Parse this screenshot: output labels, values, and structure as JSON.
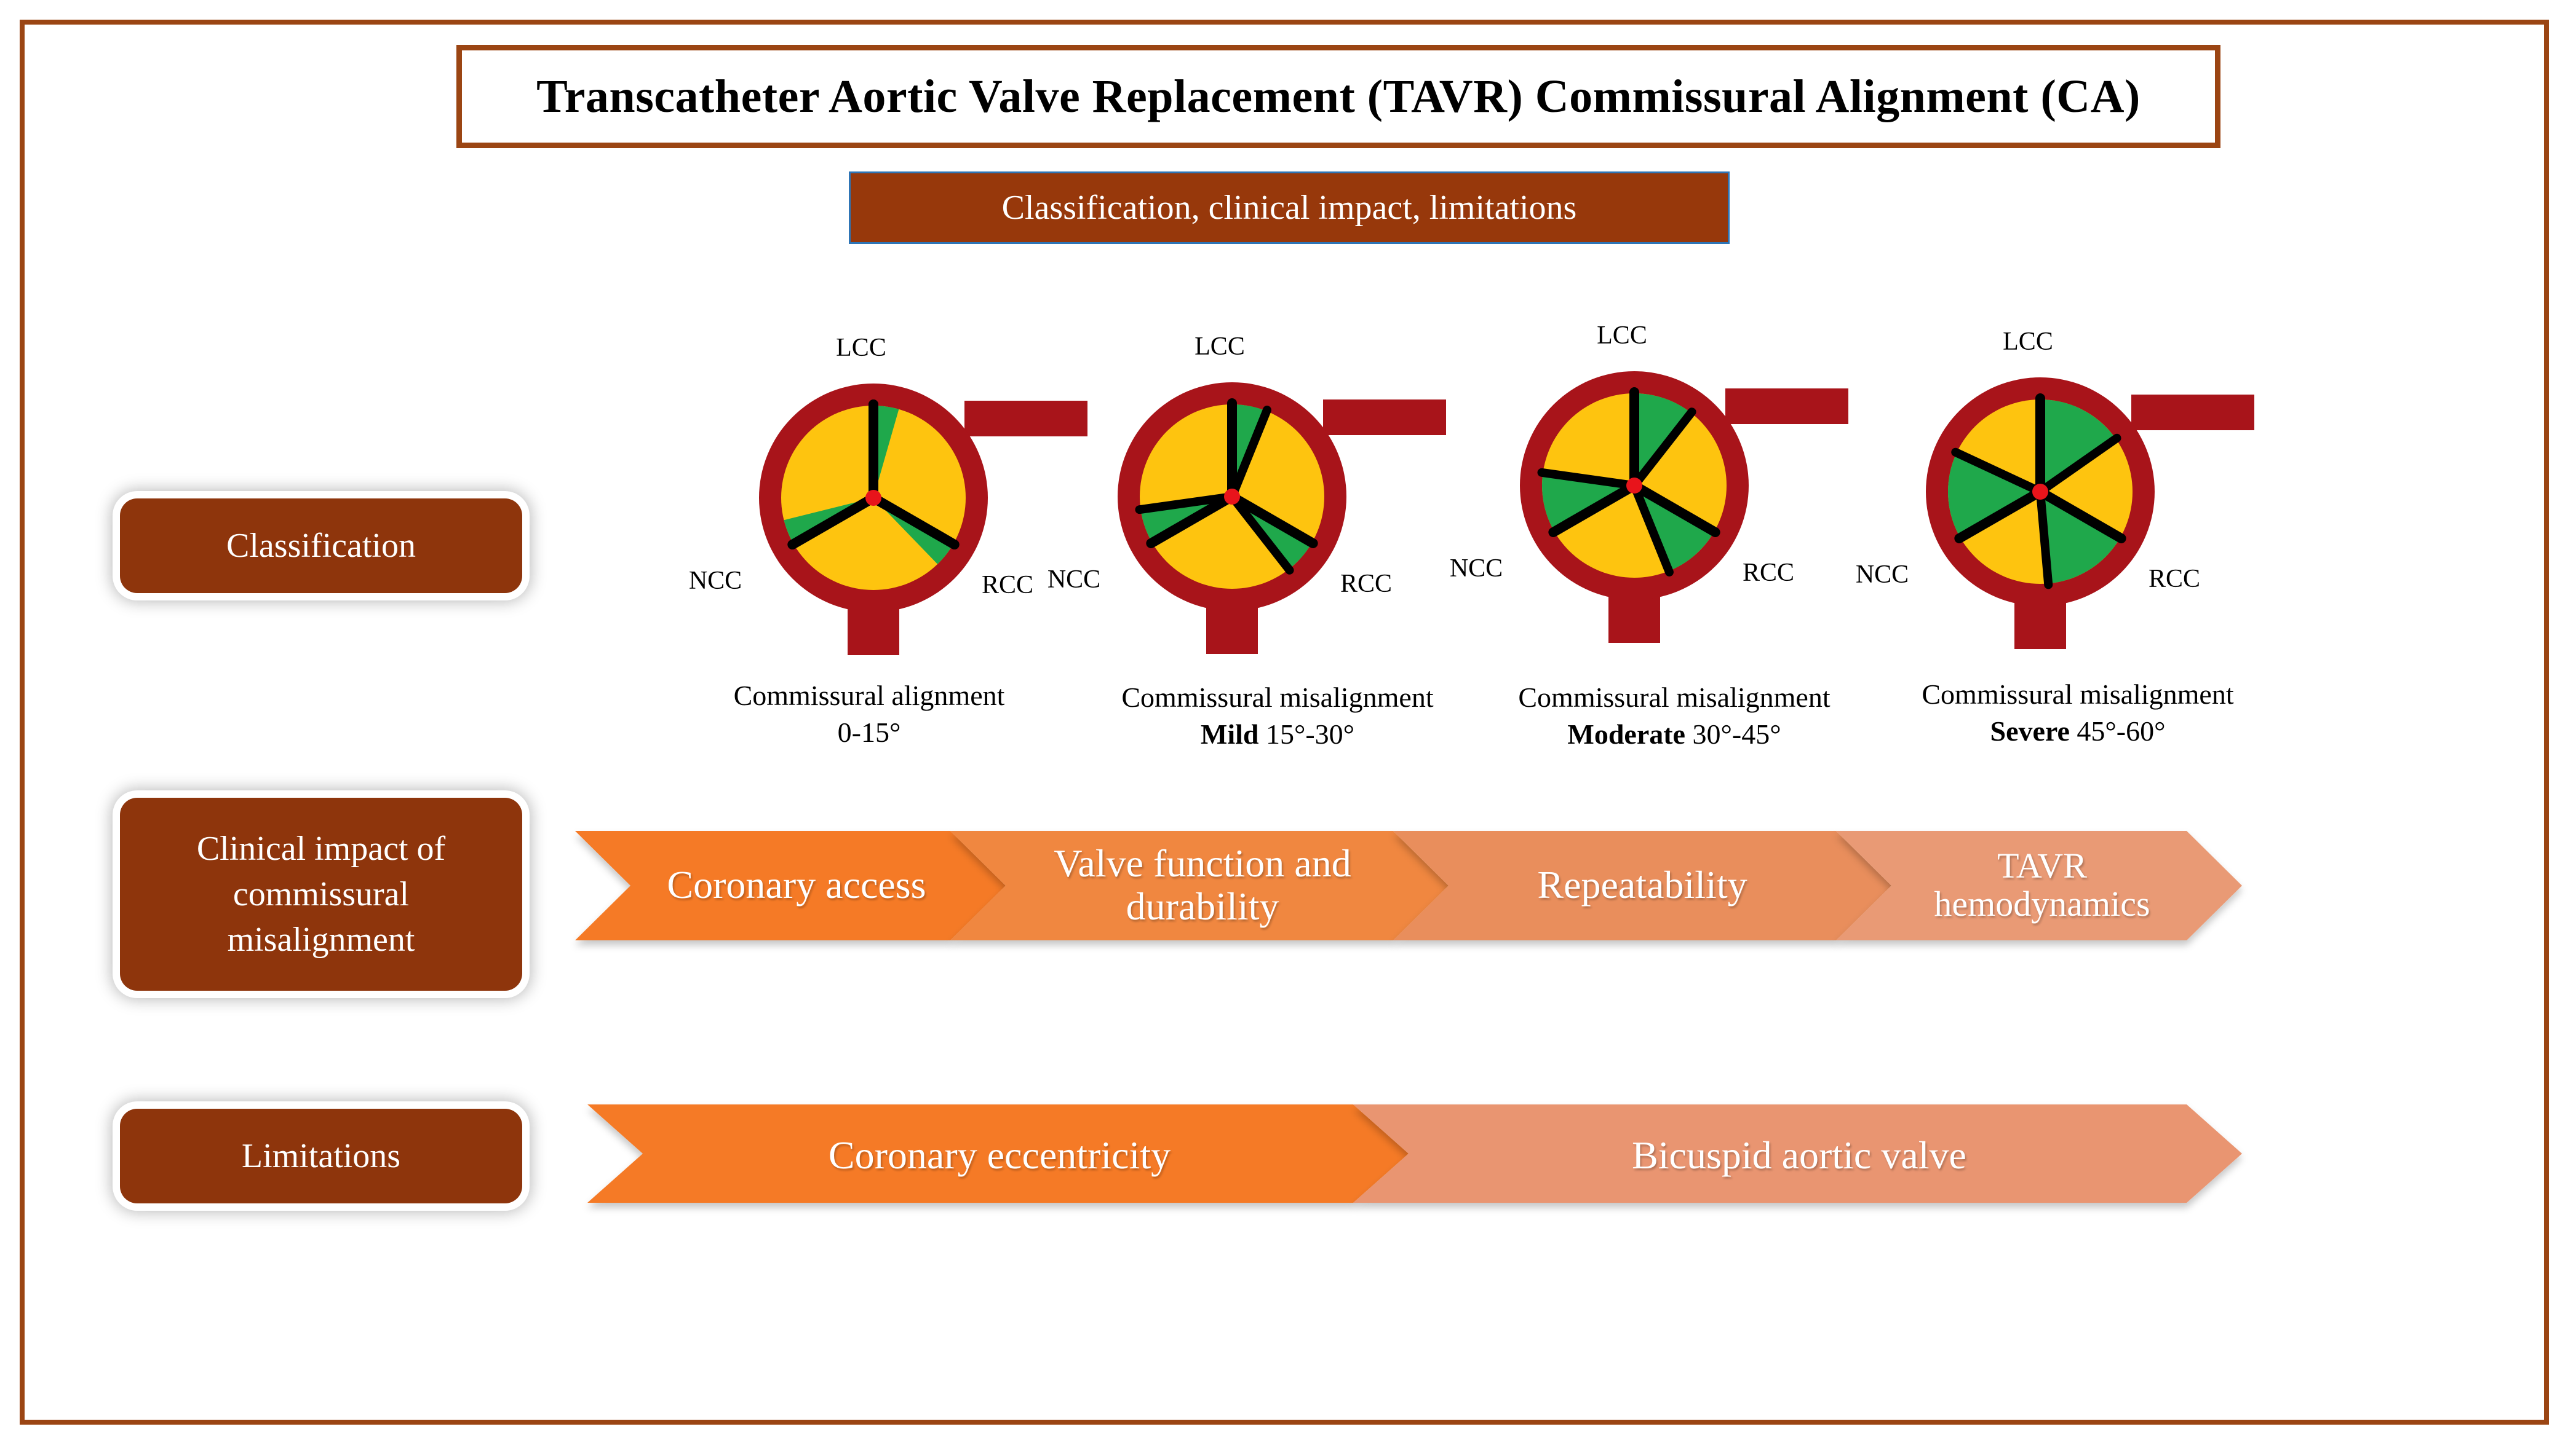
{
  "title": "Transcatheter Aortic Valve Replacement (TAVR) Commissural Alignment (CA)",
  "subtitle": "Classification, clinical impact, limitations",
  "sections": {
    "classification": "Classification",
    "clinical_impact": [
      "Clinical impact of",
      "commissural",
      "misalignment"
    ],
    "limitations": "Limitations"
  },
  "valves": [
    {
      "top": "LCC",
      "left": "NCC",
      "right": "RCC",
      "caption_line1": "Commissural alignment",
      "caption_bold": "",
      "caption_range": "0-15°",
      "misalignment_deg": 0
    },
    {
      "top": "LCC",
      "left": "NCC",
      "right": "RCC",
      "caption_line1": "Commissural misalignment",
      "caption_bold": "Mild",
      "caption_range": " 15°-30°",
      "misalignment_deg": 22
    },
    {
      "top": "LCC",
      "left": "NCC",
      "right": "RCC",
      "caption_line1": "Commissural misalignment",
      "caption_bold": "Moderate",
      "caption_range": " 30°-45°",
      "misalignment_deg": 38
    },
    {
      "top": "LCC",
      "left": "NCC",
      "right": "RCC",
      "caption_line1": "Commissural misalignment",
      "caption_bold": "Severe",
      "caption_range": " 45°-60°",
      "misalignment_deg": 55
    }
  ],
  "clinical_impact_arrows": [
    "Coronary access",
    "Valve function and durability",
    "Repeatability",
    "TAVR hemodynamics"
  ],
  "limitation_arrows": [
    "Coronary eccentricity",
    "Bicuspid aortic valve"
  ],
  "colors": {
    "frame": "#9b4513",
    "button": "#8e350c",
    "annulus": "#a8141a",
    "leaflet": "#fec40f",
    "misalign": "#1fa84b",
    "arrow_dark": "#f57a28",
    "arrow_light": "#e89266"
  }
}
